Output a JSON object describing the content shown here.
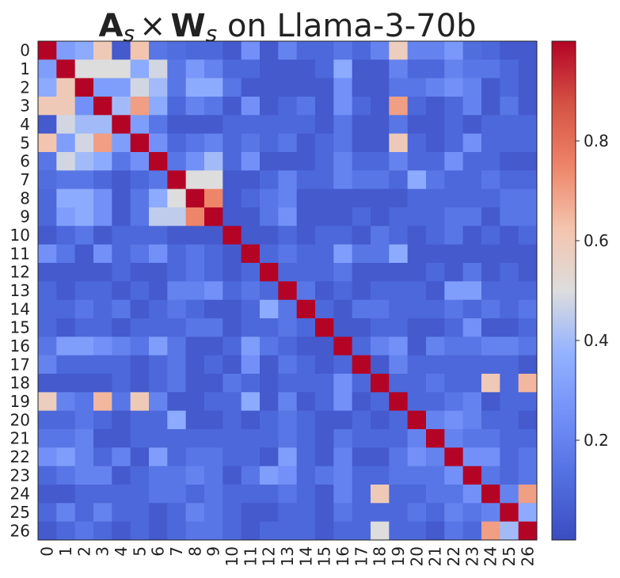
{
  "chart_data": {
    "type": "heatmap",
    "title": {
      "a": "A",
      "a_sub": "s",
      "times": "×",
      "w": "W",
      "w_sub": "s",
      "rest": " on Llama-3-70b"
    },
    "x_categories": [
      "0",
      "1",
      "2",
      "3",
      "4",
      "5",
      "6",
      "7",
      "8",
      "9",
      "10",
      "11",
      "12",
      "13",
      "14",
      "15",
      "16",
      "17",
      "18",
      "19",
      "20",
      "21",
      "22",
      "23",
      "24",
      "25",
      "26"
    ],
    "y_categories": [
      "0",
      "1",
      "2",
      "3",
      "4",
      "5",
      "6",
      "7",
      "8",
      "9",
      "10",
      "11",
      "12",
      "13",
      "14",
      "15",
      "16",
      "17",
      "18",
      "19",
      "20",
      "21",
      "22",
      "23",
      "24",
      "25",
      "26"
    ],
    "colorbar": {
      "colormap": "coolwarm",
      "vmin": 0.0,
      "vmax": 1.0,
      "ticks": [
        0.2,
        0.4,
        0.6,
        0.8
      ],
      "tick_labels": [
        "0.2",
        "0.4",
        "0.6",
        "0.8"
      ]
    },
    "values": [
      [
        1.0,
        0.3,
        0.35,
        0.6,
        0.05,
        0.62,
        0.15,
        0.12,
        0.1,
        0.1,
        0.05,
        0.25,
        0.05,
        0.2,
        0.1,
        0.1,
        0.15,
        0.1,
        0.2,
        0.58,
        0.2,
        0.2,
        0.28,
        0.12,
        0.1,
        0.05,
        0.05
      ],
      [
        0.3,
        1.0,
        0.5,
        0.5,
        0.5,
        0.35,
        0.48,
        0.15,
        0.28,
        0.2,
        0.1,
        0.1,
        0.05,
        0.05,
        0.05,
        0.1,
        0.35,
        0.05,
        0.05,
        0.2,
        0.1,
        0.1,
        0.2,
        0.15,
        0.15,
        0.1,
        0.05
      ],
      [
        0.35,
        0.6,
        1.0,
        0.3,
        0.3,
        0.48,
        0.4,
        0.15,
        0.35,
        0.35,
        0.15,
        0.05,
        0.05,
        0.05,
        0.05,
        0.05,
        0.25,
        0.05,
        0.05,
        0.15,
        0.15,
        0.2,
        0.25,
        0.2,
        0.05,
        0.1,
        0.05
      ],
      [
        0.6,
        0.6,
        0.25,
        1.0,
        0.4,
        0.7,
        0.35,
        0.1,
        0.2,
        0.15,
        0.05,
        0.25,
        0.05,
        0.1,
        0.15,
        0.05,
        0.25,
        0.1,
        0.05,
        0.7,
        0.1,
        0.05,
        0.1,
        0.2,
        0.05,
        0.15,
        0.05
      ],
      [
        0.05,
        0.48,
        0.4,
        0.4,
        1.0,
        0.3,
        0.15,
        0.05,
        0.05,
        0.05,
        0.1,
        0.1,
        0.1,
        0.1,
        0.1,
        0.05,
        0.15,
        0.05,
        0.05,
        0.15,
        0.05,
        0.05,
        0.1,
        0.05,
        0.1,
        0.1,
        0.1
      ],
      [
        0.62,
        0.3,
        0.48,
        0.7,
        0.3,
        1.0,
        0.25,
        0.1,
        0.15,
        0.2,
        0.1,
        0.15,
        0.1,
        0.15,
        0.05,
        0.1,
        0.15,
        0.05,
        0.05,
        0.6,
        0.1,
        0.05,
        0.1,
        0.25,
        0.1,
        0.1,
        0.1
      ],
      [
        0.15,
        0.48,
        0.4,
        0.35,
        0.15,
        0.25,
        1.0,
        0.15,
        0.25,
        0.4,
        0.1,
        0.25,
        0.05,
        0.05,
        0.05,
        0.1,
        0.2,
        0.1,
        0.1,
        0.2,
        0.1,
        0.1,
        0.25,
        0.1,
        0.1,
        0.05,
        0.05
      ],
      [
        0.12,
        0.15,
        0.15,
        0.1,
        0.05,
        0.1,
        0.15,
        1.0,
        0.5,
        0.5,
        0.05,
        0.05,
        0.1,
        0.2,
        0.1,
        0.1,
        0.2,
        0.15,
        0.15,
        0.1,
        0.35,
        0.15,
        0.1,
        0.1,
        0.15,
        0.1,
        0.1
      ],
      [
        0.1,
        0.35,
        0.35,
        0.25,
        0.05,
        0.15,
        0.35,
        0.5,
        1.0,
        0.75,
        0.05,
        0.1,
        0.15,
        0.2,
        0.05,
        0.05,
        0.05,
        0.05,
        0.05,
        0.05,
        0.1,
        0.1,
        0.1,
        0.1,
        0.1,
        0.15,
        0.15
      ],
      [
        0.1,
        0.3,
        0.35,
        0.25,
        0.05,
        0.15,
        0.45,
        0.45,
        0.75,
        1.0,
        0.05,
        0.05,
        0.15,
        0.25,
        0.05,
        0.05,
        0.05,
        0.1,
        0.05,
        0.1,
        0.1,
        0.1,
        0.15,
        0.15,
        0.05,
        0.15,
        0.15
      ],
      [
        0.05,
        0.1,
        0.15,
        0.05,
        0.1,
        0.1,
        0.1,
        0.05,
        0.05,
        0.05,
        1.0,
        0.05,
        0.05,
        0.1,
        0.05,
        0.1,
        0.1,
        0.05,
        0.15,
        0.1,
        0.05,
        0.1,
        0.15,
        0.05,
        0.1,
        0.05,
        0.1
      ],
      [
        0.25,
        0.15,
        0.05,
        0.25,
        0.1,
        0.15,
        0.25,
        0.1,
        0.15,
        0.1,
        0.05,
        1.0,
        0.1,
        0.15,
        0.1,
        0.1,
        0.3,
        0.15,
        0.15,
        0.35,
        0.05,
        0.05,
        0.05,
        0.05,
        0.05,
        0.05,
        0.05
      ],
      [
        0.05,
        0.05,
        0.05,
        0.05,
        0.1,
        0.05,
        0.05,
        0.1,
        0.15,
        0.1,
        0.05,
        0.1,
        1.0,
        0.1,
        0.1,
        0.1,
        0.15,
        0.05,
        0.05,
        0.05,
        0.05,
        0.1,
        0.05,
        0.15,
        0.05,
        0.1,
        0.05
      ],
      [
        0.1,
        0.05,
        0.1,
        0.1,
        0.05,
        0.1,
        0.05,
        0.2,
        0.2,
        0.25,
        0.1,
        0.15,
        0.1,
        1.0,
        0.15,
        0.05,
        0.1,
        0.05,
        0.1,
        0.1,
        0.1,
        0.05,
        0.3,
        0.3,
        0.1,
        0.1,
        0.1
      ],
      [
        0.1,
        0.1,
        0.15,
        0.1,
        0.15,
        0.05,
        0.1,
        0.15,
        0.1,
        0.05,
        0.05,
        0.1,
        0.35,
        0.15,
        1.0,
        0.1,
        0.05,
        0.15,
        0.15,
        0.1,
        0.1,
        0.1,
        0.15,
        0.1,
        0.15,
        0.1,
        0.15
      ],
      [
        0.1,
        0.05,
        0.1,
        0.1,
        0.05,
        0.1,
        0.1,
        0.1,
        0.15,
        0.15,
        0.05,
        0.1,
        0.1,
        0.15,
        0.1,
        1.0,
        0.05,
        0.05,
        0.1,
        0.1,
        0.05,
        0.05,
        0.1,
        0.25,
        0.05,
        0.05,
        0.1
      ],
      [
        0.15,
        0.3,
        0.3,
        0.25,
        0.2,
        0.15,
        0.3,
        0.15,
        0.05,
        0.05,
        0.1,
        0.3,
        0.15,
        0.1,
        0.05,
        0.05,
        1.0,
        0.1,
        0.2,
        0.25,
        0.05,
        0.2,
        0.15,
        0.15,
        0.2,
        0.2,
        0.15
      ],
      [
        0.2,
        0.1,
        0.1,
        0.1,
        0.1,
        0.05,
        0.1,
        0.15,
        0.05,
        0.1,
        0.05,
        0.25,
        0.05,
        0.15,
        0.1,
        0.05,
        0.1,
        1.0,
        0.05,
        0.2,
        0.1,
        0.1,
        0.1,
        0.1,
        0.1,
        0.1,
        0.05
      ],
      [
        0.05,
        0.05,
        0.05,
        0.05,
        0.1,
        0.05,
        0.1,
        0.15,
        0.05,
        0.05,
        0.15,
        0.1,
        0.05,
        0.1,
        0.1,
        0.1,
        0.25,
        0.1,
        1.0,
        0.1,
        0.1,
        0.15,
        0.1,
        0.1,
        0.6,
        0.1,
        0.65
      ],
      [
        0.58,
        0.2,
        0.15,
        0.65,
        0.15,
        0.6,
        0.2,
        0.05,
        0.05,
        0.1,
        0.1,
        0.35,
        0.05,
        0.2,
        0.05,
        0.1,
        0.25,
        0.05,
        0.1,
        1.0,
        0.1,
        0.1,
        0.15,
        0.2,
        0.05,
        0.1,
        0.1
      ],
      [
        0.1,
        0.1,
        0.15,
        0.1,
        0.05,
        0.1,
        0.1,
        0.35,
        0.05,
        0.05,
        0.1,
        0.05,
        0.1,
        0.15,
        0.1,
        0.05,
        0.05,
        0.1,
        0.05,
        0.1,
        1.0,
        0.2,
        0.25,
        0.2,
        0.1,
        0.1,
        0.05
      ],
      [
        0.15,
        0.15,
        0.2,
        0.05,
        0.05,
        0.1,
        0.1,
        0.1,
        0.1,
        0.1,
        0.1,
        0.1,
        0.1,
        0.15,
        0.1,
        0.05,
        0.15,
        0.1,
        0.1,
        0.1,
        0.2,
        1.0,
        0.2,
        0.15,
        0.15,
        0.1,
        0.1
      ],
      [
        0.25,
        0.3,
        0.2,
        0.1,
        0.2,
        0.05,
        0.3,
        0.1,
        0.15,
        0.15,
        0.1,
        0.1,
        0.05,
        0.3,
        0.1,
        0.05,
        0.2,
        0.05,
        0.05,
        0.15,
        0.25,
        0.2,
        1.0,
        0.25,
        0.25,
        0.1,
        0.15
      ],
      [
        0.1,
        0.15,
        0.2,
        0.2,
        0.05,
        0.1,
        0.15,
        0.15,
        0.2,
        0.15,
        0.05,
        0.15,
        0.3,
        0.25,
        0.1,
        0.15,
        0.2,
        0.1,
        0.1,
        0.15,
        0.15,
        0.15,
        0.25,
        1.0,
        0.15,
        0.1,
        0.15
      ],
      [
        0.05,
        0.05,
        0.1,
        0.1,
        0.1,
        0.1,
        0.15,
        0.15,
        0.1,
        0.15,
        0.1,
        0.1,
        0.1,
        0.15,
        0.1,
        0.05,
        0.2,
        0.1,
        0.6,
        0.1,
        0.1,
        0.15,
        0.15,
        0.25,
        1.0,
        0.2,
        0.7
      ],
      [
        0.1,
        0.2,
        0.1,
        0.2,
        0.1,
        0.1,
        0.05,
        0.1,
        0.2,
        0.15,
        0.1,
        0.05,
        0.05,
        0.1,
        0.1,
        0.05,
        0.15,
        0.1,
        0.1,
        0.1,
        0.15,
        0.1,
        0.2,
        0.15,
        0.2,
        1.0,
        0.35
      ],
      [
        0.05,
        0.1,
        0.15,
        0.1,
        0.05,
        0.1,
        0.05,
        0.1,
        0.15,
        0.15,
        0.1,
        0.05,
        0.1,
        0.1,
        0.1,
        0.05,
        0.1,
        0.1,
        0.5,
        0.1,
        0.1,
        0.05,
        0.15,
        0.1,
        0.7,
        0.4,
        1.0
      ]
    ]
  }
}
